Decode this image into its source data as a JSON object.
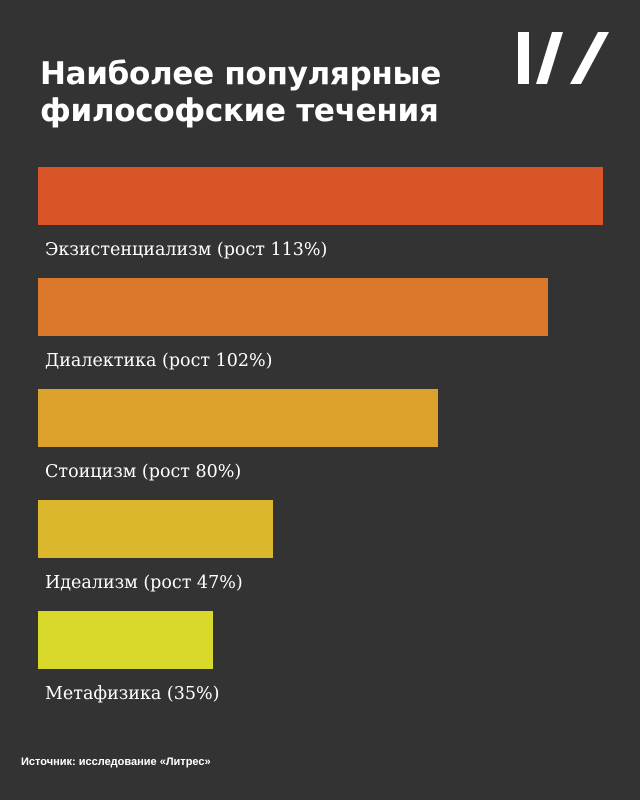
{
  "title": "Наиболее популярные философские течения",
  "logo": "W-logo",
  "source": "Источник: исследование «Литрес»",
  "colors": {
    "background": "#333333",
    "text": "#ffffff",
    "logo": "#ffffff"
  },
  "chart_data": {
    "type": "bar",
    "orientation": "horizontal",
    "title": "Наиболее популярные философские течения",
    "categories": [
      "Экзистенциализм (рост 113%)",
      "Диалектика (рост 102%)",
      "Стоицизм (рост 80%)",
      "Идеализм (рост 47%)",
      "Метафизика (35%)"
    ],
    "values": [
      113,
      102,
      80,
      47,
      35
    ],
    "colors": [
      "#d95427",
      "#db782c",
      "#dca12b",
      "#dbb72e",
      "#d9d92b"
    ],
    "xlim": [
      0,
      113
    ],
    "grid": false,
    "axes_visible": false
  }
}
